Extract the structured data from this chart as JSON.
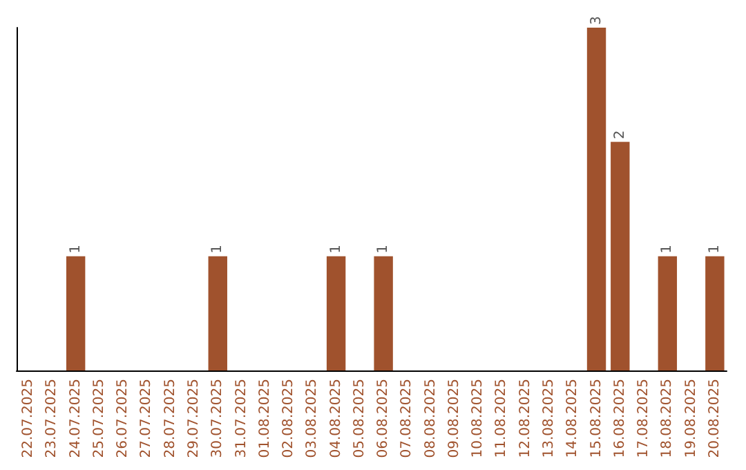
{
  "chart_data": {
    "type": "bar",
    "categories": [
      "22.07.2025",
      "23.07.2025",
      "24.07.2025",
      "25.07.2025",
      "26.07.2025",
      "27.07.2025",
      "28.07.2025",
      "29.07.2025",
      "30.07.2025",
      "31.07.2025",
      "01.08.2025",
      "02.08.2025",
      "03.08.2025",
      "04.08.2025",
      "05.08.2025",
      "06.08.2025",
      "07.08.2025",
      "08.08.2025",
      "09.08.2025",
      "10.08.2025",
      "11.08.2025",
      "12.08.2025",
      "13.08.2025",
      "14.08.2025",
      "15.08.2025",
      "16.08.2025",
      "17.08.2025",
      "18.08.2025",
      "19.08.2025",
      "20.08.2025"
    ],
    "values": [
      0,
      0,
      1,
      0,
      0,
      0,
      0,
      0,
      1,
      0,
      0,
      0,
      0,
      1,
      0,
      1,
      0,
      0,
      0,
      0,
      0,
      0,
      0,
      0,
      3,
      2,
      0,
      1,
      0,
      1
    ],
    "value_labels": [
      null,
      null,
      "1",
      null,
      null,
      null,
      null,
      null,
      "1",
      null,
      null,
      null,
      null,
      "1",
      null,
      "1",
      null,
      null,
      null,
      null,
      null,
      null,
      null,
      null,
      "3",
      "2",
      null,
      "1",
      null,
      "1"
    ],
    "color": "#a0522d",
    "ylim": [
      0,
      3
    ],
    "tick_labels": "x"
  }
}
